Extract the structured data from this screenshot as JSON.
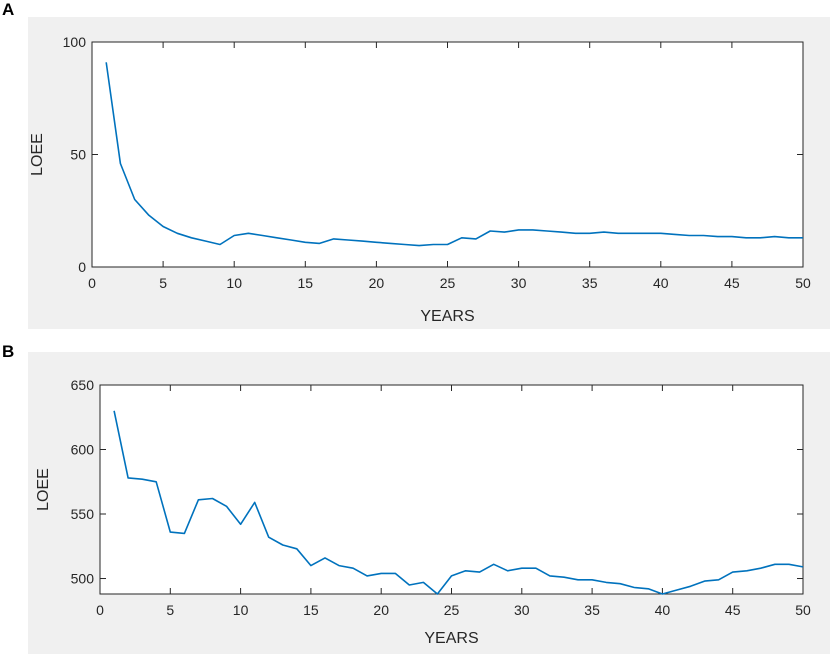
{
  "chart_data": [
    {
      "type": "line",
      "panel": "A",
      "xlabel": "YEARS",
      "ylabel": "LOEE",
      "xlim": [
        0,
        50
      ],
      "ylim": [
        0,
        100
      ],
      "xticks": [
        0,
        5,
        10,
        15,
        20,
        25,
        30,
        35,
        40,
        45,
        50
      ],
      "yticks": [
        0,
        50,
        100
      ],
      "color": "#0072bd",
      "x": [
        1,
        2,
        3,
        4,
        5,
        6,
        7,
        8,
        9,
        10,
        11,
        12,
        13,
        14,
        15,
        16,
        17,
        18,
        19,
        20,
        21,
        22,
        23,
        24,
        25,
        26,
        27,
        28,
        29,
        30,
        31,
        32,
        33,
        34,
        35,
        36,
        37,
        38,
        39,
        40,
        41,
        42,
        43,
        44,
        45,
        46,
        47,
        48,
        49,
        50
      ],
      "y": [
        91,
        46,
        30,
        23,
        18,
        15,
        13,
        11.5,
        10,
        14,
        15,
        14,
        13,
        12,
        11,
        10.5,
        12.5,
        12,
        11.5,
        11,
        10.5,
        10,
        9.5,
        10,
        10,
        13,
        12.5,
        16,
        15.5,
        16.5,
        16.5,
        16,
        15.5,
        15,
        15,
        15.5,
        15,
        15,
        15,
        15,
        14.5,
        14,
        14,
        13.5,
        13.5,
        13,
        13,
        13.5,
        13,
        13
      ]
    },
    {
      "type": "line",
      "panel": "B",
      "xlabel": "YEARS",
      "ylabel": "LOEE",
      "xlim": [
        0,
        50
      ],
      "ylim": [
        488,
        650
      ],
      "xticks": [
        0,
        5,
        10,
        15,
        20,
        25,
        30,
        35,
        40,
        45,
        50
      ],
      "yticks": [
        500,
        550,
        600,
        650
      ],
      "color": "#0072bd",
      "x": [
        1,
        2,
        3,
        4,
        5,
        6,
        7,
        8,
        9,
        10,
        11,
        12,
        13,
        14,
        15,
        16,
        17,
        18,
        19,
        20,
        21,
        22,
        23,
        24,
        25,
        26,
        27,
        28,
        29,
        30,
        31,
        32,
        33,
        34,
        35,
        36,
        37,
        38,
        39,
        40,
        41,
        42,
        43,
        44,
        45,
        46,
        47,
        48,
        49,
        50
      ],
      "y": [
        630,
        578,
        577,
        575,
        536,
        535,
        561,
        562,
        556,
        542,
        559,
        532,
        526,
        523,
        510,
        516,
        510,
        508,
        502,
        504,
        504,
        495,
        497,
        488,
        502,
        506,
        505,
        511,
        506,
        508,
        508,
        502,
        501,
        499,
        499,
        497,
        496,
        493,
        492,
        488,
        491,
        494,
        498,
        499,
        505,
        506,
        508,
        511,
        511,
        509
      ]
    }
  ]
}
